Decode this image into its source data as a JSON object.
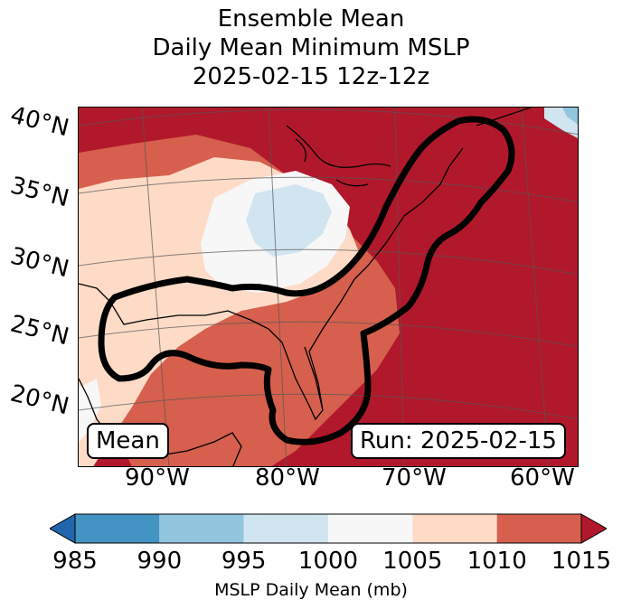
{
  "title": {
    "line1": "Ensemble Mean",
    "line2": "Daily Mean Minimum MSLP",
    "line3": "2025-02-15 12z-12z"
  },
  "map": {
    "lat_labels": [
      "40°N",
      "35°N",
      "30°N",
      "25°N",
      "20°N"
    ],
    "lon_labels": [
      "90°W",
      "80°W",
      "70°W",
      "60°W"
    ],
    "extent": {
      "lon_min": -97,
      "lon_max": -58,
      "lat_min": 16,
      "lat_max": 41
    },
    "contour_description_color": "#000000",
    "badges": {
      "left": "Mean",
      "right": "Run: 2025-02-15"
    }
  },
  "colorbar": {
    "label": "MSLP Daily Mean (mb)",
    "ticks": [
      "985",
      "990",
      "995",
      "1000",
      "1005",
      "1010",
      "1015"
    ],
    "colors": [
      "#2166ac",
      "#4393c3",
      "#92c5de",
      "#d1e5f0",
      "#f7f7f7",
      "#fddbc7",
      "#d6604d",
      "#b2182b"
    ],
    "extend": "both"
  }
}
